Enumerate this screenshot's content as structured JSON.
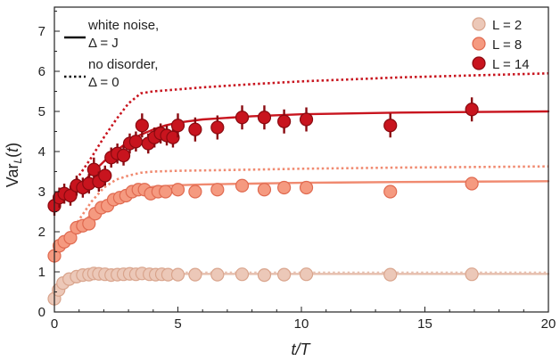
{
  "chart_data": {
    "type": "scatter",
    "xlabel": "t/T",
    "ylabel": "Var_L(t)",
    "xlim": [
      0,
      20
    ],
    "ylim": [
      0,
      7.6
    ],
    "xticks": [
      0,
      5,
      10,
      15,
      20
    ],
    "yticks": [
      0,
      1,
      2,
      3,
      4,
      5,
      6,
      7
    ],
    "xtick_labels": [
      "0",
      "5",
      "10",
      "15",
      "20"
    ],
    "ytick_labels": [
      "0",
      "1",
      "2",
      "3",
      "4",
      "5",
      "6",
      "7"
    ],
    "grid": false,
    "legend_left": {
      "position": "top-left",
      "entries": [
        {
          "style": "solid",
          "line1": "white noise,",
          "line2": "Δ = J"
        },
        {
          "style": "dotted",
          "line1": "no disorder,",
          "line2": "Δ = 0"
        }
      ]
    },
    "legend_right": {
      "position": "top-right",
      "entries": [
        "L = 2",
        "L = 8",
        "L = 14"
      ]
    },
    "series": [
      {
        "name": "L = 2",
        "fill": "#ecc8b8",
        "stroke": "#d9a48c",
        "points": [
          {
            "x": 0.0,
            "y": 0.33,
            "err": 0
          },
          {
            "x": 0.17,
            "y": 0.55,
            "err": 0
          },
          {
            "x": 0.35,
            "y": 0.72,
            "err": 0
          },
          {
            "x": 0.6,
            "y": 0.82,
            "err": 0
          },
          {
            "x": 0.9,
            "y": 0.88,
            "err": 0
          },
          {
            "x": 1.15,
            "y": 0.92,
            "err": 0
          },
          {
            "x": 1.4,
            "y": 0.93,
            "err": 0
          },
          {
            "x": 1.6,
            "y": 0.96,
            "err": 0
          },
          {
            "x": 1.8,
            "y": 0.95,
            "err": 0
          },
          {
            "x": 2.05,
            "y": 0.94,
            "err": 0
          },
          {
            "x": 2.3,
            "y": 0.92,
            "err": 0
          },
          {
            "x": 2.55,
            "y": 0.93,
            "err": 0
          },
          {
            "x": 2.8,
            "y": 0.94,
            "err": 0
          },
          {
            "x": 3.05,
            "y": 0.95,
            "err": 0
          },
          {
            "x": 3.3,
            "y": 0.94,
            "err": 0
          },
          {
            "x": 3.55,
            "y": 0.96,
            "err": 0
          },
          {
            "x": 3.85,
            "y": 0.94,
            "err": 0
          },
          {
            "x": 4.1,
            "y": 0.93,
            "err": 0
          },
          {
            "x": 4.35,
            "y": 0.94,
            "err": 0
          },
          {
            "x": 4.6,
            "y": 0.93,
            "err": 0
          },
          {
            "x": 5.0,
            "y": 0.93,
            "err": 0
          },
          {
            "x": 5.7,
            "y": 0.93,
            "err": 0
          },
          {
            "x": 6.6,
            "y": 0.93,
            "err": 0
          },
          {
            "x": 7.6,
            "y": 0.94,
            "err": 0
          },
          {
            "x": 8.5,
            "y": 0.92,
            "err": 0
          },
          {
            "x": 9.3,
            "y": 0.93,
            "err": 0
          },
          {
            "x": 10.2,
            "y": 0.94,
            "err": 0
          },
          {
            "x": 13.6,
            "y": 0.93,
            "err": 0
          },
          {
            "x": 16.9,
            "y": 0.94,
            "err": 0
          }
        ]
      },
      {
        "name": "L = 8",
        "fill": "#f59a80",
        "stroke": "#e06a50",
        "points": [
          {
            "x": 0.0,
            "y": 1.4,
            "err": 0
          },
          {
            "x": 0.2,
            "y": 1.65,
            "err": 0
          },
          {
            "x": 0.4,
            "y": 1.75,
            "err": 0
          },
          {
            "x": 0.65,
            "y": 1.85,
            "err": 0
          },
          {
            "x": 0.9,
            "y": 2.1,
            "err": 0
          },
          {
            "x": 1.15,
            "y": 2.15,
            "err": 0
          },
          {
            "x": 1.4,
            "y": 2.2,
            "err": 0
          },
          {
            "x": 1.65,
            "y": 2.45,
            "err": 0
          },
          {
            "x": 1.9,
            "y": 2.6,
            "err": 0
          },
          {
            "x": 2.15,
            "y": 2.65,
            "err": 0
          },
          {
            "x": 2.4,
            "y": 2.8,
            "err": 0
          },
          {
            "x": 2.65,
            "y": 2.85,
            "err": 0
          },
          {
            "x": 2.9,
            "y": 2.9,
            "err": 0
          },
          {
            "x": 3.15,
            "y": 3.0,
            "err": 0
          },
          {
            "x": 3.4,
            "y": 3.05,
            "err": 0
          },
          {
            "x": 3.65,
            "y": 3.05,
            "err": 0
          },
          {
            "x": 3.9,
            "y": 2.95,
            "err": 0
          },
          {
            "x": 4.2,
            "y": 3.0,
            "err": 0
          },
          {
            "x": 4.5,
            "y": 3.0,
            "err": 0
          },
          {
            "x": 5.0,
            "y": 3.05,
            "err": 0
          },
          {
            "x": 5.7,
            "y": 3.0,
            "err": 0
          },
          {
            "x": 6.6,
            "y": 3.05,
            "err": 0
          },
          {
            "x": 7.6,
            "y": 3.15,
            "err": 0
          },
          {
            "x": 8.5,
            "y": 3.05,
            "err": 0
          },
          {
            "x": 9.3,
            "y": 3.1,
            "err": 0
          },
          {
            "x": 10.2,
            "y": 3.1,
            "err": 0
          },
          {
            "x": 13.6,
            "y": 3.0,
            "err": 0
          },
          {
            "x": 16.9,
            "y": 3.2,
            "err": 0
          }
        ]
      },
      {
        "name": "L = 14",
        "fill": "#c8141e",
        "stroke": "#8a0a10",
        "points": [
          {
            "x": 0.0,
            "y": 2.65,
            "err": 0.25
          },
          {
            "x": 0.2,
            "y": 2.85,
            "err": 0.25
          },
          {
            "x": 0.4,
            "y": 2.95,
            "err": 0.25
          },
          {
            "x": 0.65,
            "y": 2.9,
            "err": 0.25
          },
          {
            "x": 0.9,
            "y": 3.15,
            "err": 0.25
          },
          {
            "x": 1.15,
            "y": 3.1,
            "err": 0.25
          },
          {
            "x": 1.4,
            "y": 3.2,
            "err": 0.25
          },
          {
            "x": 1.6,
            "y": 3.55,
            "err": 0.3
          },
          {
            "x": 1.8,
            "y": 3.25,
            "err": 0.25
          },
          {
            "x": 2.05,
            "y": 3.4,
            "err": 0.25
          },
          {
            "x": 2.3,
            "y": 3.85,
            "err": 0.25
          },
          {
            "x": 2.55,
            "y": 3.95,
            "err": 0.25
          },
          {
            "x": 2.8,
            "y": 3.9,
            "err": 0.25
          },
          {
            "x": 3.05,
            "y": 4.2,
            "err": 0.25
          },
          {
            "x": 3.3,
            "y": 4.25,
            "err": 0.25
          },
          {
            "x": 3.55,
            "y": 4.65,
            "err": 0.3
          },
          {
            "x": 3.8,
            "y": 4.2,
            "err": 0.25
          },
          {
            "x": 4.05,
            "y": 4.35,
            "err": 0.25
          },
          {
            "x": 4.3,
            "y": 4.45,
            "err": 0.25
          },
          {
            "x": 4.55,
            "y": 4.4,
            "err": 0.25
          },
          {
            "x": 4.8,
            "y": 4.35,
            "err": 0.25
          },
          {
            "x": 5.0,
            "y": 4.65,
            "err": 0.3
          },
          {
            "x": 5.7,
            "y": 4.55,
            "err": 0.3
          },
          {
            "x": 6.6,
            "y": 4.6,
            "err": 0.3
          },
          {
            "x": 7.6,
            "y": 4.85,
            "err": 0.3
          },
          {
            "x": 8.5,
            "y": 4.85,
            "err": 0.3
          },
          {
            "x": 9.3,
            "y": 4.75,
            "err": 0.3
          },
          {
            "x": 10.2,
            "y": 4.8,
            "err": 0.3
          },
          {
            "x": 13.6,
            "y": 4.65,
            "err": 0.3
          },
          {
            "x": 16.9,
            "y": 5.05,
            "err": 0.3
          }
        ]
      }
    ],
    "curves": [
      {
        "series": "L = 2",
        "style": "solid",
        "color": "#e6bfae",
        "x": [
          0,
          0.3,
          0.7,
          1.2,
          2,
          3,
          5,
          8,
          12,
          16,
          20
        ],
        "y": [
          0.35,
          0.65,
          0.85,
          0.92,
          0.94,
          0.95,
          0.95,
          0.95,
          0.95,
          0.95,
          0.95
        ]
      },
      {
        "series": "L = 2",
        "style": "dotted",
        "color": "#e6bfae",
        "x": [
          0,
          0.3,
          0.7,
          1.2,
          2,
          3,
          5,
          8,
          12,
          16,
          20
        ],
        "y": [
          0.35,
          0.68,
          0.88,
          0.95,
          0.97,
          0.98,
          0.98,
          0.98,
          0.98,
          0.98,
          0.98
        ]
      },
      {
        "series": "L = 8",
        "style": "solid",
        "color": "#f08a70",
        "x": [
          0,
          0.5,
          1,
          1.5,
          2,
          2.5,
          3,
          3.5,
          4,
          5,
          6,
          8,
          10,
          14,
          20
        ],
        "y": [
          1.45,
          1.75,
          2.1,
          2.45,
          2.7,
          2.88,
          3.0,
          3.07,
          3.12,
          3.16,
          3.18,
          3.2,
          3.22,
          3.24,
          3.26
        ]
      },
      {
        "series": "L = 8",
        "style": "dotted",
        "color": "#f08a70",
        "x": [
          0,
          0.5,
          1,
          1.5,
          2,
          2.5,
          3,
          3.5,
          4,
          5,
          6,
          8,
          10,
          14,
          20
        ],
        "y": [
          1.45,
          1.85,
          2.3,
          2.75,
          3.1,
          3.3,
          3.4,
          3.47,
          3.5,
          3.52,
          3.53,
          3.55,
          3.57,
          3.6,
          3.63
        ]
      },
      {
        "series": "L = 14",
        "style": "solid",
        "color": "#c8141e",
        "x": [
          0,
          0.5,
          1,
          1.5,
          2,
          2.5,
          3,
          3.5,
          4,
          4.5,
          5,
          6,
          8,
          10,
          14,
          20
        ],
        "y": [
          2.65,
          2.9,
          3.15,
          3.45,
          3.75,
          4.02,
          4.25,
          4.42,
          4.55,
          4.65,
          4.72,
          4.8,
          4.88,
          4.93,
          4.97,
          5.0
        ]
      },
      {
        "series": "L = 14",
        "style": "dotted",
        "color": "#c8141e",
        "x": [
          0,
          0.5,
          1,
          1.5,
          2,
          2.5,
          3,
          3.5,
          4,
          5,
          6,
          8,
          10,
          14,
          20
        ],
        "y": [
          2.65,
          3.0,
          3.4,
          3.85,
          4.35,
          4.8,
          5.2,
          5.45,
          5.5,
          5.55,
          5.6,
          5.68,
          5.75,
          5.85,
          5.95
        ]
      }
    ]
  }
}
